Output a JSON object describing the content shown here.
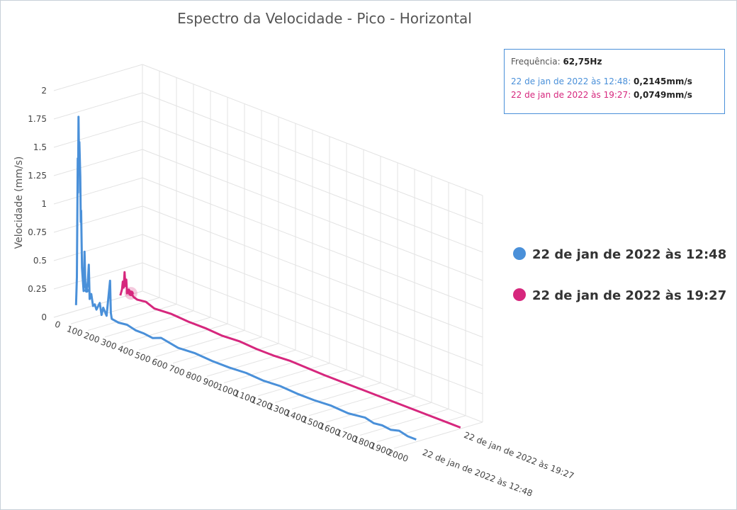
{
  "chart_data": {
    "type": "line3d",
    "title": "Espectro da Velocidade - Pico - Horizontal",
    "y_label": "Velocidade (mm/s)",
    "ylim": [
      0,
      2
    ],
    "yticks": [
      0,
      0.25,
      0.5,
      0.75,
      1,
      1.25,
      1.5,
      1.75,
      2
    ],
    "xlim": [
      0,
      2000
    ],
    "xticks": [
      0,
      100,
      200,
      300,
      400,
      500,
      600,
      700,
      800,
      900,
      1000,
      1100,
      1200,
      1300,
      1400,
      1500,
      1600,
      1700,
      1800,
      1900,
      2000
    ],
    "grid": true,
    "legend": "right",
    "series": [
      {
        "name": "22 de jan de 2022 às 12:48",
        "color": "#4a90d9",
        "x": [
          0,
          5,
          10,
          12,
          15,
          18,
          20,
          25,
          28,
          30,
          35,
          40,
          45,
          50,
          55,
          62.75,
          70,
          75,
          80,
          90,
          100,
          110,
          120,
          140,
          150,
          160,
          180,
          200,
          205,
          210,
          250,
          300,
          350,
          400,
          450,
          500,
          600,
          700,
          800,
          900,
          1000,
          1100,
          1200,
          1300,
          1400,
          1500,
          1600,
          1700,
          1750,
          1800,
          1850,
          1900,
          1950,
          2000
        ],
        "values": [
          0.05,
          0.3,
          1.35,
          1.05,
          1.72,
          1.3,
          1.5,
          1.2,
          0.8,
          0.9,
          0.4,
          0.3,
          0.2,
          0.55,
          0.25,
          0.2145,
          0.3,
          0.45,
          0.15,
          0.2,
          0.1,
          0.12,
          0.08,
          0.15,
          0.05,
          0.12,
          0.06,
          0.38,
          0.1,
          0.05,
          0.04,
          0.05,
          0.03,
          0.03,
          0.02,
          0.05,
          0.02,
          0.03,
          0.02,
          0.02,
          0.03,
          0.02,
          0.03,
          0.02,
          0.02,
          0.03,
          0.02,
          0.04,
          0.02,
          0.03,
          0.02,
          0.04,
          0.02,
          0.02
        ]
      },
      {
        "name": "22 de jan de 2022 às 19:27",
        "color": "#d6277d",
        "x": [
          0,
          10,
          15,
          20,
          25,
          30,
          35,
          40,
          50,
          62.75,
          80,
          100,
          150,
          200,
          300,
          400,
          500,
          600,
          700,
          800,
          900,
          1000,
          1200,
          1400,
          1600,
          1800,
          2000
        ],
        "values": [
          0.02,
          0.08,
          0.15,
          0.1,
          0.24,
          0.12,
          0.18,
          0.06,
          0.1,
          0.0749,
          0.05,
          0.04,
          0.05,
          0.02,
          0.03,
          0.02,
          0.02,
          0.01,
          0.02,
          0.01,
          0.01,
          0.02,
          0.01,
          0.01,
          0.01,
          0.01,
          0.01
        ]
      }
    ],
    "tooltip": {
      "x_label": "Frequência",
      "x": {
        "value": 62.75,
        "label": "62,75Hz"
      },
      "values": [
        {
          "value": 0.2145,
          "label": "0,2145mm/s"
        },
        {
          "value": 0.0749,
          "label": "0,0749mm/s"
        }
      ]
    }
  }
}
